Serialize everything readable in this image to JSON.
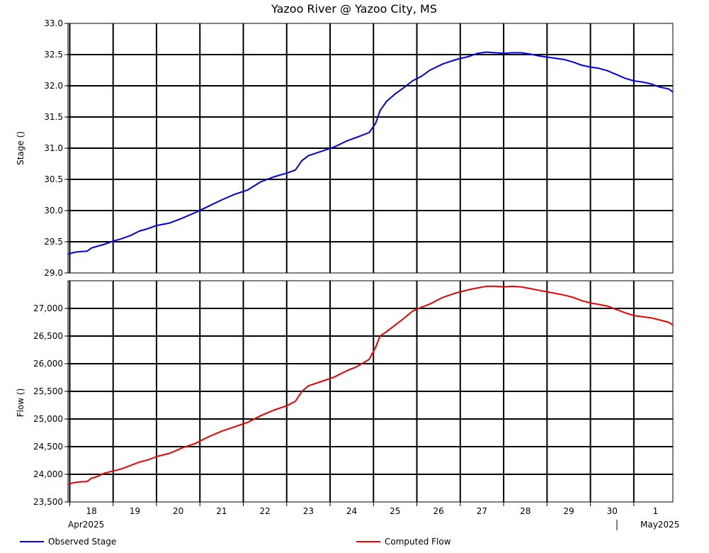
{
  "chart_data": {
    "type": "line",
    "title": "Yazoo River @ Yazoo City, MS",
    "x_tick_labels": [
      "18",
      "19",
      "20",
      "21",
      "22",
      "23",
      "24",
      "25",
      "26",
      "27",
      "28",
      "29",
      "30",
      "1"
    ],
    "x_sub_labels": [
      "Apr2025",
      "May2025"
    ],
    "x_range_days": [
      17.96,
      31.9
    ],
    "grid": true,
    "legend_placement": "bottom",
    "panels": [
      {
        "ylabel": "Stage ()",
        "ylim": [
          29.0,
          33.0
        ],
        "y_ticks": [
          "29.0",
          "29.5",
          "30.0",
          "30.5",
          "31.0",
          "31.5",
          "32.0",
          "32.5",
          "33.0"
        ],
        "y_tick_values": [
          29.0,
          29.5,
          30.0,
          30.5,
          31.0,
          31.5,
          32.0,
          32.5,
          33.0
        ],
        "series": [
          {
            "name": "Observed Stage",
            "color": "#0000ee",
            "x": [
              17.96,
              18.1,
              18.2,
              18.4,
              18.5,
              18.6,
              18.8,
              19.0,
              19.2,
              19.4,
              19.6,
              19.8,
              20.0,
              20.3,
              20.6,
              20.9,
              21.2,
              21.5,
              21.8,
              22.1,
              22.4,
              22.7,
              23.0,
              23.2,
              23.35,
              23.5,
              23.8,
              24.1,
              24.4,
              24.6,
              24.9,
              25.05,
              25.15,
              25.3,
              25.5,
              25.7,
              25.9,
              26.1,
              26.3,
              26.6,
              26.9,
              27.2,
              27.4,
              27.6,
              27.8,
              28.0,
              28.2,
              28.4,
              28.6,
              28.8,
              29.0,
              29.2,
              29.4,
              29.6,
              29.8,
              30.0,
              30.2,
              30.4,
              30.6,
              30.8,
              31.0,
              31.2,
              31.4,
              31.6,
              31.8,
              31.9
            ],
            "y": [
              29.3,
              29.33,
              29.34,
              29.35,
              29.4,
              29.42,
              29.46,
              29.51,
              29.55,
              29.6,
              29.67,
              29.71,
              29.76,
              29.8,
              29.88,
              29.97,
              30.07,
              30.17,
              30.26,
              30.33,
              30.46,
              30.54,
              30.6,
              30.65,
              30.8,
              30.88,
              30.95,
              31.02,
              31.12,
              31.17,
              31.25,
              31.4,
              31.6,
              31.75,
              31.87,
              31.97,
              32.08,
              32.15,
              32.25,
              32.35,
              32.42,
              32.47,
              32.52,
              32.54,
              32.53,
              32.52,
              32.53,
              32.53,
              32.51,
              32.48,
              32.46,
              32.44,
              32.42,
              32.38,
              32.33,
              32.3,
              32.28,
              32.24,
              32.18,
              32.12,
              32.08,
              32.06,
              32.03,
              31.98,
              31.95,
              31.9
            ]
          }
        ]
      },
      {
        "ylabel": "Flow ()",
        "ylim": [
          23500,
          27500
        ],
        "y_ticks": [
          "23,500",
          "24,000",
          "24,500",
          "25,000",
          "25,500",
          "26,000",
          "26,500",
          "27,000"
        ],
        "y_tick_values": [
          23500,
          24000,
          24500,
          25000,
          25500,
          26000,
          26500,
          27000
        ],
        "series": [
          {
            "name": "Computed Flow",
            "color": "#ee0000",
            "x": [
              17.96,
              18.1,
              18.2,
              18.4,
              18.5,
              18.6,
              18.8,
              19.0,
              19.2,
              19.4,
              19.6,
              19.8,
              20.0,
              20.3,
              20.6,
              20.9,
              21.2,
              21.5,
              21.8,
              22.1,
              22.4,
              22.7,
              23.0,
              23.2,
              23.35,
              23.5,
              23.8,
              24.1,
              24.4,
              24.6,
              24.9,
              25.05,
              25.15,
              25.3,
              25.5,
              25.7,
              25.9,
              26.1,
              26.3,
              26.6,
              26.9,
              27.2,
              27.4,
              27.6,
              27.8,
              28.0,
              28.2,
              28.4,
              28.6,
              28.8,
              29.0,
              29.2,
              29.4,
              29.6,
              29.8,
              30.0,
              30.2,
              30.4,
              30.6,
              30.8,
              31.0,
              31.2,
              31.4,
              31.6,
              31.8,
              31.9
            ],
            "y": [
              23820,
              23850,
              23860,
              23870,
              23930,
              23950,
              24020,
              24060,
              24100,
              24160,
              24220,
              24260,
              24320,
              24380,
              24480,
              24560,
              24680,
              24780,
              24860,
              24940,
              25060,
              25160,
              25240,
              25320,
              25500,
              25600,
              25680,
              25760,
              25880,
              25940,
              26080,
              26300,
              26500,
              26580,
              26700,
              26820,
              26950,
              27020,
              27080,
              27200,
              27280,
              27340,
              27370,
              27400,
              27400,
              27390,
              27400,
              27390,
              27360,
              27330,
              27300,
              27270,
              27240,
              27200,
              27140,
              27100,
              27070,
              27040,
              26980,
              26920,
              26870,
              26850,
              26830,
              26790,
              26750,
              26700
            ]
          }
        ]
      }
    ]
  }
}
